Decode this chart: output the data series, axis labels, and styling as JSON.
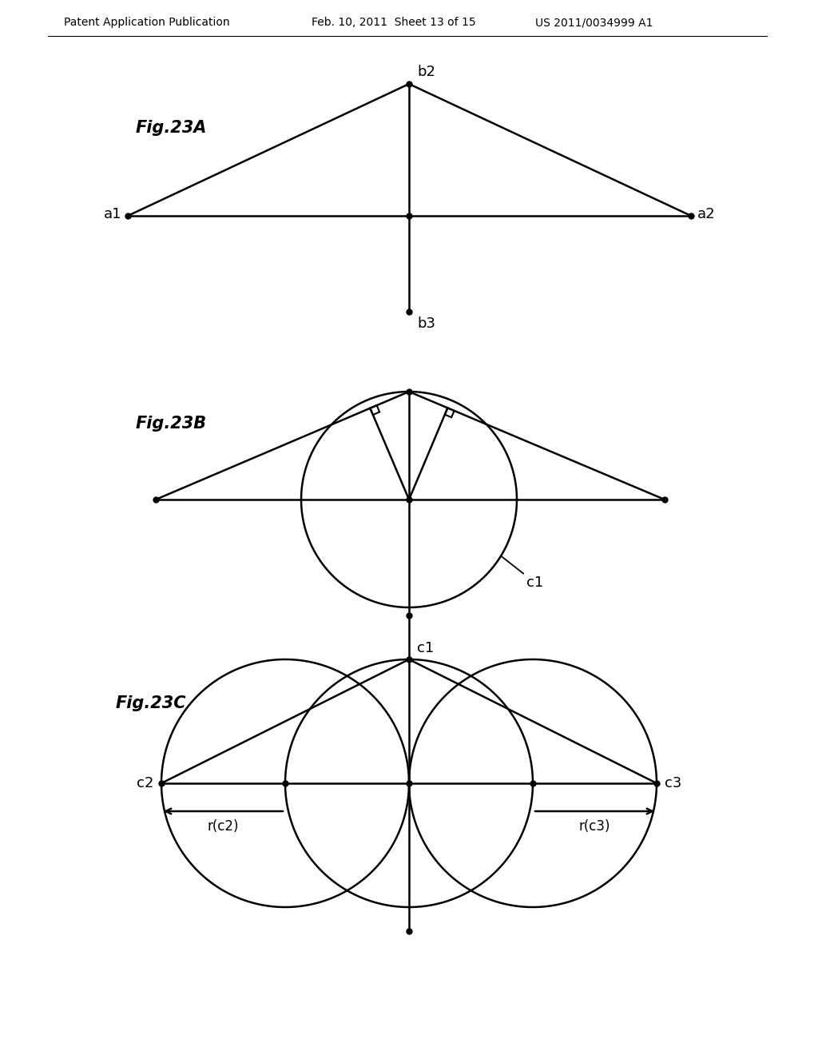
{
  "bg_color": "#ffffff",
  "line_color": "#000000",
  "header_text1": "Patent Application Publication",
  "header_text2": "Feb. 10, 2011  Sheet 13 of 15",
  "header_text3": "US 2011/0034999 A1",
  "fig23A_label": "Fig.23A",
  "fig23B_label": "Fig.23B",
  "fig23C_label": "Fig.23C",
  "dot_size": 5,
  "line_width": 1.8,
  "font_size_label": 13,
  "font_size_fig": 15,
  "font_size_header": 10
}
